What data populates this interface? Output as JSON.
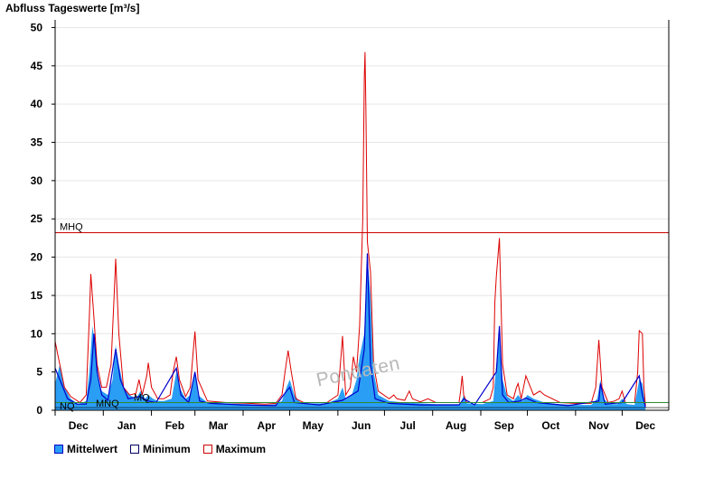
{
  "chart_data": {
    "type": "area",
    "title": "Abfluss Tageswerte [m³/s]",
    "ylabel": "",
    "xlabel": "",
    "ylim": [
      0,
      51
    ],
    "y_ticks": [
      0,
      5,
      10,
      15,
      20,
      25,
      30,
      35,
      40,
      45,
      50
    ],
    "grid": true,
    "legend_placement": "bottom-left",
    "x_ticks": [
      "Dec",
      "Jan",
      "Feb",
      "Mar",
      "Apr",
      "May",
      "Jun",
      "Jul",
      "Aug",
      "Sep",
      "Oct",
      "Nov",
      "Dec"
    ],
    "x_unit": "days since 1 Nov",
    "x_range": [
      30,
      425
    ],
    "reference_lines": [
      {
        "label": "MHQ",
        "value": 23.2,
        "color": "#cc0000"
      },
      {
        "label": "MQ",
        "value": 1.0,
        "color": "#2e8b2e"
      },
      {
        "label": "MNQ",
        "value": 0.35,
        "color": "#000000"
      },
      {
        "label": "NQ",
        "value": 0.1,
        "color": "#000000"
      }
    ],
    "series": [
      {
        "name": "Mittelwert",
        "color": "#2a9df4",
        "points": [
          [
            30,
            3.5
          ],
          [
            33,
            6
          ],
          [
            36,
            3
          ],
          [
            40,
            1.5
          ],
          [
            45,
            0.8
          ],
          [
            50,
            1.2
          ],
          [
            52,
            5
          ],
          [
            54,
            11
          ],
          [
            56,
            8
          ],
          [
            58,
            4
          ],
          [
            60,
            2.5
          ],
          [
            64,
            2
          ],
          [
            67,
            4
          ],
          [
            69,
            8.5
          ],
          [
            71,
            6
          ],
          [
            74,
            3
          ],
          [
            78,
            2
          ],
          [
            82,
            1.5
          ],
          [
            85,
            2.5
          ],
          [
            88,
            1.5
          ],
          [
            90,
            2
          ],
          [
            93,
            1.5
          ],
          [
            96,
            1.2
          ],
          [
            100,
            1.2
          ],
          [
            105,
            1.5
          ],
          [
            108,
            5
          ],
          [
            110,
            3
          ],
          [
            114,
            1.5
          ],
          [
            117,
            2
          ],
          [
            120,
            5
          ],
          [
            122,
            2
          ],
          [
            128,
            1
          ],
          [
            140,
            0.9
          ],
          [
            155,
            0.8
          ],
          [
            165,
            0.7
          ],
          [
            172,
            0.8
          ],
          [
            176,
            1.2
          ],
          [
            179,
            3
          ],
          [
            181,
            4
          ],
          [
            184,
            2
          ],
          [
            188,
            1
          ],
          [
            195,
            0.9
          ],
          [
            205,
            0.9
          ],
          [
            212,
            1.5
          ],
          [
            215,
            3
          ],
          [
            217,
            1.5
          ],
          [
            221,
            2
          ],
          [
            224,
            4
          ],
          [
            226,
            7
          ],
          [
            229,
            10
          ],
          [
            231,
            20
          ],
          [
            233,
            15
          ],
          [
            235,
            5
          ],
          [
            238,
            2
          ],
          [
            245,
            1.2
          ],
          [
            255,
            1
          ],
          [
            265,
            0.9
          ],
          [
            275,
            0.8
          ],
          [
            285,
            0.8
          ],
          [
            291,
            0.8
          ],
          [
            293,
            2
          ],
          [
            295,
            0.9
          ],
          [
            305,
            0.8
          ],
          [
            312,
            1.2
          ],
          [
            314,
            6
          ],
          [
            316,
            10
          ],
          [
            318,
            4
          ],
          [
            321,
            1.8
          ],
          [
            325,
            1.2
          ],
          [
            328,
            2
          ],
          [
            331,
            1.2
          ],
          [
            334,
            2
          ],
          [
            338,
            1.5
          ],
          [
            345,
            1
          ],
          [
            355,
            0.8
          ],
          [
            365,
            0.7
          ],
          [
            375,
            0.7
          ],
          [
            379,
            1.5
          ],
          [
            381,
            4
          ],
          [
            383,
            1.5
          ],
          [
            387,
            0.8
          ],
          [
            392,
            0.8
          ],
          [
            395,
            1.5
          ],
          [
            398,
            0.8
          ],
          [
            403,
            0.7
          ],
          [
            406,
            4
          ],
          [
            408,
            3.5
          ],
          [
            410,
            0.5
          ]
        ]
      },
      {
        "name": "Minimum",
        "color": "#0000cc",
        "points": [
          [
            30,
            5.5
          ],
          [
            33,
            4
          ],
          [
            38,
            1.5
          ],
          [
            44,
            0.8
          ],
          [
            50,
            0.8
          ],
          [
            53,
            4
          ],
          [
            55,
            10
          ],
          [
            57,
            5
          ],
          [
            60,
            2
          ],
          [
            64,
            1.3
          ],
          [
            69,
            8
          ],
          [
            72,
            4
          ],
          [
            77,
            1.5
          ],
          [
            84,
            1.8
          ],
          [
            90,
            1.2
          ],
          [
            95,
            1
          ],
          [
            108,
            5.5
          ],
          [
            111,
            2
          ],
          [
            116,
            1
          ],
          [
            120,
            5
          ],
          [
            123,
            1.2
          ],
          [
            130,
            0.9
          ],
          [
            150,
            0.7
          ],
          [
            172,
            0.6
          ],
          [
            179,
            2.5
          ],
          [
            181,
            3
          ],
          [
            184,
            1
          ],
          [
            200,
            0.7
          ],
          [
            215,
            1.3
          ],
          [
            225,
            2.5
          ],
          [
            229,
            8
          ],
          [
            231,
            20.5
          ],
          [
            233,
            6
          ],
          [
            236,
            1.5
          ],
          [
            245,
            0.9
          ],
          [
            265,
            0.7
          ],
          [
            290,
            0.7
          ],
          [
            293,
            1.5
          ],
          [
            300,
            0.7
          ],
          [
            314,
            5
          ],
          [
            316,
            11
          ],
          [
            318,
            2
          ],
          [
            322,
            1
          ],
          [
            329,
            1.2
          ],
          [
            333,
            1.6
          ],
          [
            340,
            1
          ],
          [
            360,
            0.6
          ],
          [
            380,
            1.2
          ],
          [
            381,
            3.5
          ],
          [
            384,
            0.8
          ],
          [
            395,
            1
          ],
          [
            406,
            4.5
          ],
          [
            408,
            2
          ],
          [
            410,
            0.4
          ]
        ]
      },
      {
        "name": "Maximum",
        "color": "#dd0000",
        "points": [
          [
            30,
            9
          ],
          [
            32,
            7
          ],
          [
            36,
            3
          ],
          [
            40,
            1.8
          ],
          [
            46,
            1
          ],
          [
            50,
            2
          ],
          [
            52,
            12
          ],
          [
            53,
            17.8
          ],
          [
            55,
            12
          ],
          [
            57,
            6
          ],
          [
            60,
            3
          ],
          [
            63,
            3
          ],
          [
            66,
            6
          ],
          [
            68,
            15
          ],
          [
            69,
            19.8
          ],
          [
            71,
            10
          ],
          [
            74,
            3
          ],
          [
            78,
            2
          ],
          [
            82,
            2.2
          ],
          [
            84,
            4
          ],
          [
            86,
            2
          ],
          [
            89,
            4.5
          ],
          [
            90,
            6.2
          ],
          [
            92,
            3
          ],
          [
            96,
            1.5
          ],
          [
            100,
            1.5
          ],
          [
            104,
            2
          ],
          [
            106,
            5
          ],
          [
            108,
            7
          ],
          [
            110,
            4
          ],
          [
            114,
            1.8
          ],
          [
            117,
            3
          ],
          [
            119,
            8
          ],
          [
            120,
            10.3
          ],
          [
            122,
            4
          ],
          [
            128,
            1.2
          ],
          [
            140,
            1
          ],
          [
            155,
            0.9
          ],
          [
            165,
            0.8
          ],
          [
            172,
            0.9
          ],
          [
            176,
            2
          ],
          [
            178,
            5
          ],
          [
            180,
            7.8
          ],
          [
            182,
            5
          ],
          [
            185,
            1.5
          ],
          [
            190,
            1
          ],
          [
            195,
            1
          ],
          [
            205,
            1
          ],
          [
            212,
            2
          ],
          [
            214,
            7
          ],
          [
            215,
            9.7
          ],
          [
            217,
            2
          ],
          [
            220,
            3
          ],
          [
            222,
            7
          ],
          [
            224,
            5
          ],
          [
            226,
            11
          ],
          [
            228,
            25
          ],
          [
            229,
            43.5
          ],
          [
            229.5,
            46.8
          ],
          [
            230,
            40
          ],
          [
            231,
            22
          ],
          [
            233,
            18
          ],
          [
            235,
            6
          ],
          [
            238,
            2.5
          ],
          [
            245,
            1.5
          ],
          [
            248,
            2
          ],
          [
            250,
            1.5
          ],
          [
            255,
            1.3
          ],
          [
            258,
            2.5
          ],
          [
            260,
            1.5
          ],
          [
            265,
            1.1
          ],
          [
            270,
            1.5
          ],
          [
            275,
            1
          ],
          [
            285,
            1
          ],
          [
            290,
            1
          ],
          [
            291,
            2.5
          ],
          [
            292,
            4.5
          ],
          [
            293,
            2
          ],
          [
            295,
            1
          ],
          [
            305,
            1
          ],
          [
            310,
            1.5
          ],
          [
            312,
            3
          ],
          [
            313,
            14
          ],
          [
            314,
            17.5
          ],
          [
            316,
            22.5
          ],
          [
            318,
            6
          ],
          [
            321,
            2
          ],
          [
            325,
            1.5
          ],
          [
            327,
            3
          ],
          [
            328,
            3.5
          ],
          [
            330,
            1.5
          ],
          [
            333,
            4.5
          ],
          [
            335,
            3.5
          ],
          [
            338,
            2
          ],
          [
            342,
            2.5
          ],
          [
            345,
            2
          ],
          [
            355,
            1
          ],
          [
            365,
            0.9
          ],
          [
            375,
            0.9
          ],
          [
            378,
            3
          ],
          [
            380,
            9.2
          ],
          [
            382,
            3
          ],
          [
            386,
            1
          ],
          [
            390,
            1.2
          ],
          [
            393,
            1.5
          ],
          [
            395,
            2.5
          ],
          [
            397,
            1
          ],
          [
            403,
            1
          ],
          [
            405,
            5
          ],
          [
            406,
            10.4
          ],
          [
            408,
            10
          ],
          [
            409,
            3
          ],
          [
            410,
            0.6
          ]
        ]
      }
    ]
  },
  "legend": [
    {
      "label": "Mittelwert",
      "fill": "#2a9df4",
      "border": "#0000cc"
    },
    {
      "label": "Minimum",
      "fill": "#ffffff",
      "border": "#000066"
    },
    {
      "label": "Maximum",
      "fill": "#ffffff",
      "border": "#cc0000"
    }
  ],
  "watermark": "Pondaten"
}
